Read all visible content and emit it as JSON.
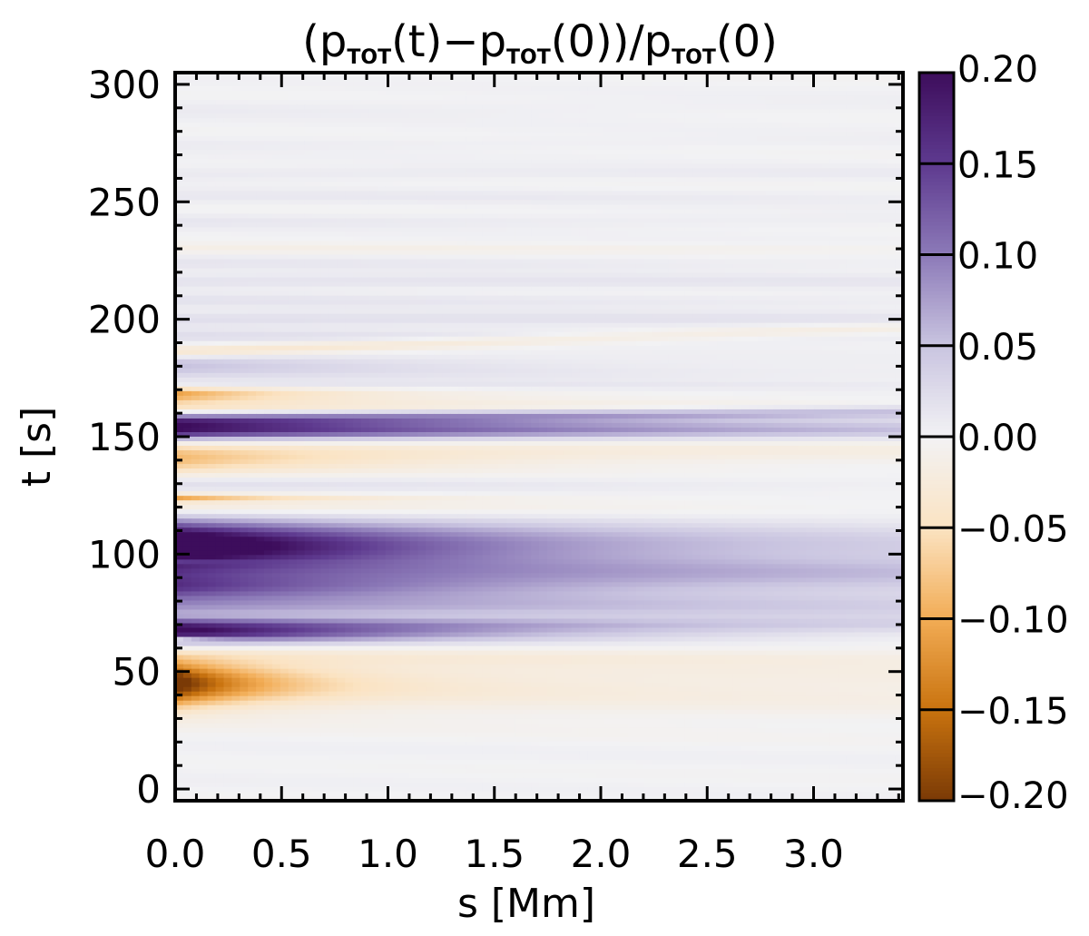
{
  "chart_data": {
    "type": "heatmap",
    "title_base": "(p",
    "title_sub": "TOT",
    "title_parts": [
      "(t)−p",
      "(0))/p",
      "(0)"
    ],
    "xlabel": "s [Mm]",
    "ylabel": "t [s]",
    "xlim": [
      0.0,
      3.42
    ],
    "ylim": [
      -5,
      305
    ],
    "xticks": [
      0.0,
      0.5,
      1.0,
      1.5,
      2.0,
      2.5,
      3.0
    ],
    "xtick_labels": [
      "0.0",
      "0.5",
      "1.0",
      "1.5",
      "2.0",
      "2.5",
      "3.0"
    ],
    "yticks": [
      0,
      50,
      100,
      150,
      200,
      250,
      300
    ],
    "ytick_labels": [
      "0",
      "50",
      "100",
      "150",
      "200",
      "250",
      "300"
    ],
    "colorbar": {
      "range": [
        -0.2,
        0.2
      ],
      "ticks": [
        0.2,
        0.15,
        0.1,
        0.05,
        0.0,
        -0.05,
        -0.1,
        -0.15,
        -0.2
      ],
      "tick_labels": [
        "0.20",
        "0.15",
        "0.10",
        "0.05",
        "0.00",
        "−0.05",
        "−0.10",
        "−0.15",
        "−0.20"
      ],
      "colors": [
        "#3d0d5c",
        "#5e3a8f",
        "#8c7ab8",
        "#c9c4e0",
        "#f2f2f4",
        "#fbe3c2",
        "#f2ac55",
        "#c9730f",
        "#7a3a06"
      ]
    },
    "bands": [
      {
        "t": 12,
        "width": 10,
        "amp": 0.002,
        "decay": 3.0,
        "shift": 0
      },
      {
        "t": 45,
        "width": 9,
        "amp": -0.2,
        "decay": 0.4,
        "shift": 0
      },
      {
        "t": 45,
        "width": 14,
        "amp": -0.03,
        "decay": 6.0,
        "shift": 0
      },
      {
        "t": 56,
        "width": 3,
        "amp": -0.015,
        "decay": 5.0,
        "shift": 0
      },
      {
        "t": 64,
        "width": 1.5,
        "amp": -0.12,
        "decay": 0.2,
        "shift": 0
      },
      {
        "t": 66,
        "width": 4,
        "amp": 0.2,
        "decay": 1.2,
        "shift": 0
      },
      {
        "t": 70,
        "width": 3,
        "amp": 0.09,
        "decay": 3.0,
        "shift": 0
      },
      {
        "t": 78,
        "width": 6,
        "amp": 0.08,
        "decay": 4.5,
        "shift": 0
      },
      {
        "t": 86,
        "width": 5,
        "amp": 0.11,
        "decay": 1.6,
        "shift": 0
      },
      {
        "t": 92,
        "width": 6,
        "amp": 0.07,
        "decay": 5.0,
        "shift": 0
      },
      {
        "t": 97,
        "width": 1.5,
        "amp": -0.06,
        "decay": 0.3,
        "shift": 0
      },
      {
        "t": 104,
        "width": 9,
        "amp": 0.24,
        "decay": 1.1,
        "shift": 0
      },
      {
        "t": 102,
        "width": 12,
        "amp": 0.05,
        "decay": 6.0,
        "shift": 0
      },
      {
        "t": 120,
        "width": 4,
        "amp": -0.03,
        "decay": 2.0,
        "shift": 0
      },
      {
        "t": 124,
        "width": 1.5,
        "amp": -0.1,
        "decay": 0.6,
        "shift": 0
      },
      {
        "t": 130,
        "width": 3,
        "amp": 0.02,
        "decay": 3.0,
        "shift": 0
      },
      {
        "t": 140,
        "width": 6,
        "amp": -0.07,
        "decay": 0.9,
        "shift": 0
      },
      {
        "t": 144,
        "width": 5,
        "amp": -0.03,
        "decay": 5.0,
        "shift": 0
      },
      {
        "t": 153,
        "width": 4,
        "amp": 0.2,
        "decay": 2.5,
        "shift": 0
      },
      {
        "t": 157,
        "width": 2.5,
        "amp": 0.1,
        "decay": 6.0,
        "shift": 1
      },
      {
        "t": 163,
        "width": 2.5,
        "amp": -0.05,
        "decay": 1.5,
        "shift": 0
      },
      {
        "t": 168,
        "width": 3,
        "amp": -0.11,
        "decay": 0.6,
        "shift": 0
      },
      {
        "t": 172,
        "width": 2,
        "amp": 0.02,
        "decay": 3.0,
        "shift": 0
      },
      {
        "t": 177,
        "width": 3,
        "amp": 0.015,
        "decay": 4.0,
        "shift": 0
      },
      {
        "t": 181,
        "width": 4,
        "amp": 0.05,
        "decay": 1.2,
        "shift": 0
      },
      {
        "t": 186,
        "width": 2.5,
        "amp": -0.04,
        "decay": 5.0,
        "shift": 3
      },
      {
        "t": 193,
        "width": 3,
        "amp": 0.02,
        "decay": 6.0,
        "shift": 0
      },
      {
        "t": 200,
        "width": 3,
        "amp": 0.025,
        "decay": 6.0,
        "shift": 0
      },
      {
        "t": 208,
        "width": 3,
        "amp": 0.015,
        "decay": 6.0,
        "shift": 0
      },
      {
        "t": 216,
        "width": 3,
        "amp": 0.02,
        "decay": 6.0,
        "shift": 0
      },
      {
        "t": 224,
        "width": 3,
        "amp": 0.012,
        "decay": 6.0,
        "shift": 0
      },
      {
        "t": 230,
        "width": 2,
        "amp": -0.012,
        "decay": 6.0,
        "shift": 0
      },
      {
        "t": 242,
        "width": 3,
        "amp": 0.012,
        "decay": 6.0,
        "shift": 0
      },
      {
        "t": 252,
        "width": 3,
        "amp": 0.01,
        "decay": 6.0,
        "shift": 0
      },
      {
        "t": 262,
        "width": 3,
        "amp": 0.012,
        "decay": 6.0,
        "shift": 0
      },
      {
        "t": 275,
        "width": 3,
        "amp": 0.008,
        "decay": 6.0,
        "shift": 0
      },
      {
        "t": 290,
        "width": 4,
        "amp": 0.008,
        "decay": 6.0,
        "shift": 0
      }
    ],
    "background": 0.01
  }
}
